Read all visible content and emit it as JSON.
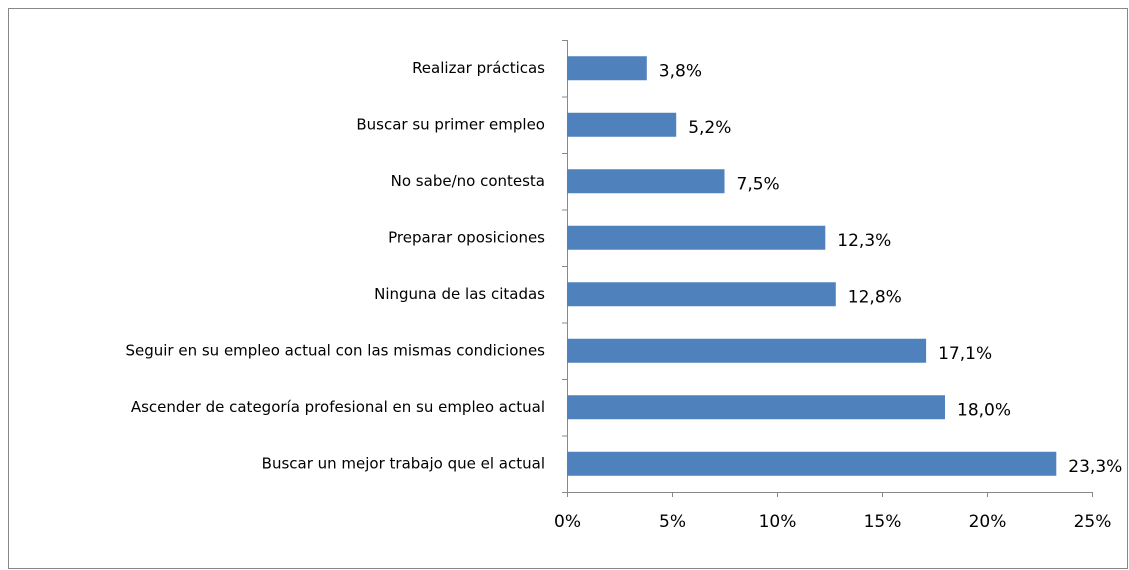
{
  "chart_data": {
    "type": "bar",
    "orientation": "horizontal",
    "categories": [
      "Realizar prácticas",
      "Buscar su primer empleo",
      "No sabe/no contesta",
      "Preparar oposiciones",
      "Ninguna de las citadas",
      "Seguir en su empleo actual con las mismas condiciones",
      "Ascender de categoría profesional en su empleo actual",
      "Buscar un mejor trabajo que el actual"
    ],
    "values": [
      3.8,
      5.2,
      7.5,
      12.3,
      12.8,
      17.1,
      18.0,
      23.3
    ],
    "value_labels": [
      "3,8%",
      "5,2%",
      "7,5%",
      "12,3%",
      "12,8%",
      "17,1%",
      "18,0%",
      "23,3%"
    ],
    "color": "#4f81bd",
    "xlim": [
      0,
      25
    ],
    "xticks": [
      {
        "value": 0,
        "label": "0%"
      },
      {
        "value": 5,
        "label": "5%"
      },
      {
        "value": 10,
        "label": "10%"
      },
      {
        "value": 15,
        "label": "15%"
      },
      {
        "value": 20,
        "label": "20%"
      },
      {
        "value": 25,
        "label": "25%"
      }
    ],
    "grid": false
  }
}
